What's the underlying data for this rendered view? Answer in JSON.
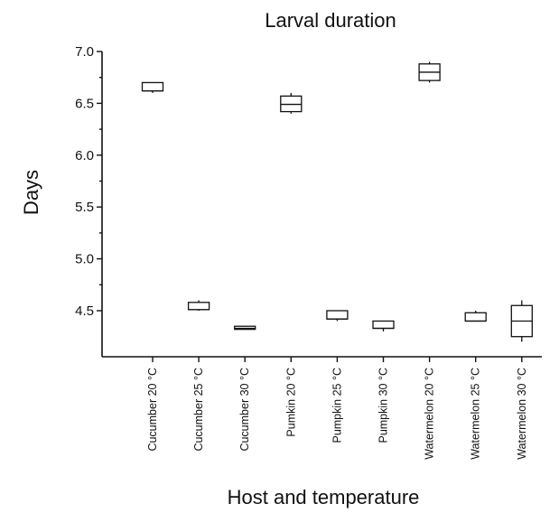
{
  "chart_data": {
    "type": "box",
    "title": "Larval duration",
    "xlabel": "Host and temperature",
    "ylabel": "Days",
    "ylim": [
      4.2,
      7.0
    ],
    "yticks": [
      "4.5",
      "5.0",
      "5.5",
      "6.0",
      "6.5",
      "7.0"
    ],
    "grid": false,
    "categories": [
      "Cucumber 20 °C",
      "Cucumber 25 °C",
      "Cucumber 30 °C",
      "Pumkin 20 °C",
      "Pumpkin 25 °C",
      "Pumpkin 30 °C",
      "Watermelon 20 °C",
      "Watermelon 25 °C",
      "Watermelon 30 °C"
    ],
    "boxes": [
      {
        "min": 6.6,
        "q1": 6.62,
        "median": 6.62,
        "q3": 6.7,
        "max": 6.7
      },
      {
        "min": 4.5,
        "q1": 4.51,
        "median": 4.51,
        "q3": 4.58,
        "max": 4.6
      },
      {
        "min": 4.32,
        "q1": 4.32,
        "median": 4.33,
        "q3": 4.35,
        "max": 4.35
      },
      {
        "min": 6.4,
        "q1": 6.42,
        "median": 6.49,
        "q3": 6.57,
        "max": 6.6
      },
      {
        "min": 4.4,
        "q1": 4.42,
        "median": 4.42,
        "q3": 4.5,
        "max": 4.5
      },
      {
        "min": 4.3,
        "q1": 4.33,
        "median": 4.33,
        "q3": 4.4,
        "max": 4.4
      },
      {
        "min": 6.7,
        "q1": 6.72,
        "median": 6.8,
        "q3": 6.88,
        "max": 6.9
      },
      {
        "min": 4.4,
        "q1": 4.4,
        "median": 4.4,
        "q3": 4.48,
        "max": 4.5
      },
      {
        "min": 4.2,
        "q1": 4.25,
        "median": 4.4,
        "q3": 4.55,
        "max": 4.6
      }
    ]
  }
}
